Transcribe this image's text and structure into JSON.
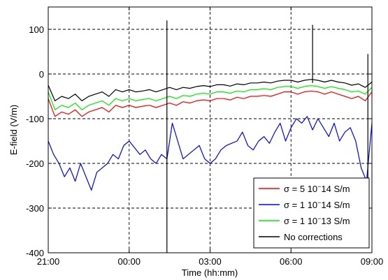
{
  "chart_data": {
    "type": "line",
    "xlabel": "Time (hh:mm)",
    "ylabel": "E-field (V/m)",
    "xlim": [
      21,
      33
    ],
    "ylim": [
      -400,
      150
    ],
    "x_ticks": [
      {
        "value": 21,
        "label": "21:00"
      },
      {
        "value": 24,
        "label": "00:00"
      },
      {
        "value": 27,
        "label": "03:00"
      },
      {
        "value": 30,
        "label": "06:00"
      },
      {
        "value": 33,
        "label": "09:00"
      }
    ],
    "y_ticks": [
      {
        "value": 100,
        "label": "100"
      },
      {
        "value": 0,
        "label": "0"
      },
      {
        "value": -100,
        "label": "-100"
      },
      {
        "value": -200,
        "label": "-200"
      },
      {
        "value": -300,
        "label": "-300"
      },
      {
        "value": -400,
        "label": "-400"
      }
    ],
    "grid": true,
    "grid_style": "dashed",
    "legend_position": "bottom-right",
    "series": [
      {
        "name_parts": [
          "σ",
          " = 5 10",
          "−",
          "14 S/m"
        ],
        "color": "#ff0000",
        "x": [
          21.0,
          21.25,
          21.5,
          21.75,
          22.0,
          22.25,
          22.5,
          22.75,
          23.0,
          23.25,
          23.5,
          23.75,
          24.0,
          24.25,
          24.5,
          24.75,
          25.0,
          25.25,
          25.5,
          25.75,
          26.0,
          26.25,
          26.5,
          26.75,
          27.0,
          27.25,
          27.5,
          27.75,
          28.0,
          28.25,
          28.5,
          28.75,
          29.0,
          29.25,
          29.5,
          29.75,
          30.0,
          30.25,
          30.5,
          30.75,
          31.0,
          31.25,
          31.5,
          31.75,
          32.0,
          32.25,
          32.5,
          32.75,
          33.0
        ],
        "y": [
          -55,
          -95,
          -85,
          -90,
          -80,
          -95,
          -85,
          -80,
          -75,
          -85,
          -70,
          -75,
          -70,
          -75,
          -72,
          -70,
          -75,
          -70,
          -65,
          -70,
          -62,
          -65,
          -60,
          -58,
          -60,
          -55,
          -55,
          -58,
          -52,
          -55,
          -50,
          -50,
          -48,
          -50,
          -45,
          -40,
          -40,
          -45,
          -40,
          -38,
          -40,
          -45,
          -40,
          -45,
          -50,
          -55,
          -50,
          -60,
          -40
        ]
      },
      {
        "name_parts": [
          "σ",
          " = 1 10",
          "−",
          "14 S/m"
        ],
        "color": "#0000ff",
        "x": [
          21.0,
          21.2,
          21.4,
          21.6,
          21.8,
          22.0,
          22.2,
          22.4,
          22.6,
          22.8,
          23.0,
          23.2,
          23.4,
          23.6,
          23.8,
          24.0,
          24.2,
          24.4,
          24.6,
          24.8,
          25.0,
          25.2,
          25.4,
          25.6,
          25.8,
          26.0,
          26.2,
          26.4,
          26.6,
          26.8,
          27.0,
          27.2,
          27.4,
          27.6,
          27.8,
          28.0,
          28.2,
          28.4,
          28.6,
          28.8,
          29.0,
          29.2,
          29.4,
          29.6,
          29.8,
          30.0,
          30.2,
          30.4,
          30.6,
          30.8,
          31.0,
          31.2,
          31.4,
          31.6,
          31.8,
          32.0,
          32.2,
          32.4,
          32.6,
          32.8,
          33.0
        ],
        "y": [
          -150,
          -180,
          -200,
          -230,
          -210,
          -240,
          -200,
          -230,
          -260,
          -220,
          -210,
          -200,
          -180,
          -190,
          -160,
          -150,
          -165,
          -180,
          -170,
          -190,
          -200,
          -180,
          -190,
          -110,
          -150,
          -190,
          -180,
          -170,
          -160,
          -190,
          -200,
          -190,
          -170,
          -160,
          -155,
          -150,
          -130,
          -160,
          -170,
          -150,
          -140,
          -155,
          -130,
          -110,
          -150,
          -120,
          -100,
          -110,
          -95,
          -125,
          -100,
          -120,
          -140,
          -110,
          -150,
          -130,
          -120,
          -150,
          -210,
          -240,
          -110
        ]
      },
      {
        "name_parts": [
          "σ",
          " = 1 10",
          "−",
          "13 S/m"
        ],
        "color": "#00ee00",
        "x": [
          21.0,
          21.25,
          21.5,
          21.75,
          22.0,
          22.25,
          22.5,
          22.75,
          23.0,
          23.25,
          23.5,
          23.75,
          24.0,
          24.25,
          24.5,
          24.75,
          25.0,
          25.25,
          25.5,
          25.75,
          26.0,
          26.25,
          26.5,
          26.75,
          27.0,
          27.25,
          27.5,
          27.75,
          28.0,
          28.25,
          28.5,
          28.75,
          29.0,
          29.25,
          29.5,
          29.75,
          30.0,
          30.25,
          30.5,
          30.75,
          31.0,
          31.25,
          31.5,
          31.75,
          32.0,
          32.25,
          32.5,
          32.75,
          33.0
        ],
        "y": [
          -40,
          -80,
          -70,
          -75,
          -65,
          -80,
          -70,
          -65,
          -60,
          -70,
          -55,
          -60,
          -55,
          -60,
          -57,
          -55,
          -60,
          -55,
          -50,
          -55,
          -48,
          -50,
          -45,
          -43,
          -45,
          -40,
          -40,
          -43,
          -38,
          -40,
          -35,
          -35,
          -33,
          -35,
          -30,
          -28,
          -28,
          -32,
          -28,
          -26,
          -28,
          -32,
          -28,
          -32,
          -35,
          -40,
          -38,
          -45,
          -30
        ]
      },
      {
        "name_parts": [
          "No corrections"
        ],
        "color": "#000000",
        "x": [
          21.0,
          21.25,
          21.5,
          21.75,
          22.0,
          22.25,
          22.5,
          22.75,
          23.0,
          23.25,
          23.5,
          23.75,
          24.0,
          24.25,
          24.5,
          24.75,
          25.0,
          25.25,
          25.5,
          25.75,
          26.0,
          26.25,
          26.5,
          26.75,
          27.0,
          27.25,
          27.5,
          27.75,
          28.0,
          28.25,
          28.5,
          28.75,
          29.0,
          29.25,
          29.5,
          29.75,
          30.0,
          30.25,
          30.5,
          30.75,
          31.0,
          31.25,
          31.5,
          31.75,
          32.0,
          32.25,
          32.5,
          32.75,
          33.0
        ],
        "y": [
          -25,
          -60,
          -50,
          -55,
          -45,
          -60,
          -50,
          -45,
          -40,
          -50,
          -35,
          -40,
          -35,
          -40,
          -38,
          -35,
          -40,
          -35,
          -30,
          -35,
          -30,
          -32,
          -28,
          -26,
          -28,
          -24,
          -24,
          -27,
          -22,
          -24,
          -20,
          -20,
          -18,
          -20,
          -16,
          -14,
          -14,
          -18,
          -14,
          -12,
          -14,
          -18,
          -14,
          -18,
          -20,
          -25,
          -22,
          -30,
          -18
        ]
      }
    ],
    "spikes": [
      {
        "x": 25.4,
        "top": 120,
        "bottom": -400
      },
      {
        "x": 30.8,
        "top": 110,
        "bottom": -20
      },
      {
        "x": 32.85,
        "top": 45,
        "bottom": -260
      }
    ]
  }
}
